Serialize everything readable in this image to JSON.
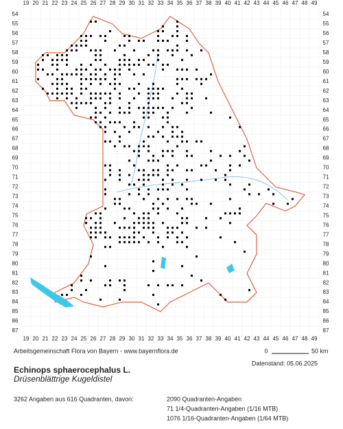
{
  "map": {
    "columns": [
      19,
      20,
      21,
      22,
      23,
      24,
      25,
      26,
      27,
      28,
      29,
      30,
      31,
      32,
      33,
      34,
      35,
      36,
      37,
      38,
      39,
      40,
      41,
      42,
      43,
      44,
      45,
      46,
      47,
      48,
      49
    ],
    "rows": [
      54,
      55,
      56,
      57,
      58,
      59,
      60,
      61,
      62,
      63,
      64,
      65,
      66,
      67,
      68,
      69,
      70,
      71,
      72,
      73,
      74,
      75,
      76,
      77,
      78,
      79,
      80,
      81,
      82,
      83,
      84,
      85,
      86,
      87
    ]
  },
  "footer": {
    "credit": "Arbeitsgemeinschaft Flora von Bayern - www.bayernflora.de",
    "scale_start": "0",
    "scale_end": "50 km",
    "date": "Datenstand: 05.06.2025",
    "species": "Echinops sphaerocephalus L.",
    "common_name": "Drüsenblättrige Kugeldistel",
    "summary": "3262 Angaben aus 616 Quadranten, davon:",
    "counts": [
      "2090 Quadranten-Angaben",
      "71 1/4-Quadranten-Angaben (1/16 MTB)",
      "1076 1/16-Quadranten-Angaben (1/64 MTB)"
    ]
  }
}
